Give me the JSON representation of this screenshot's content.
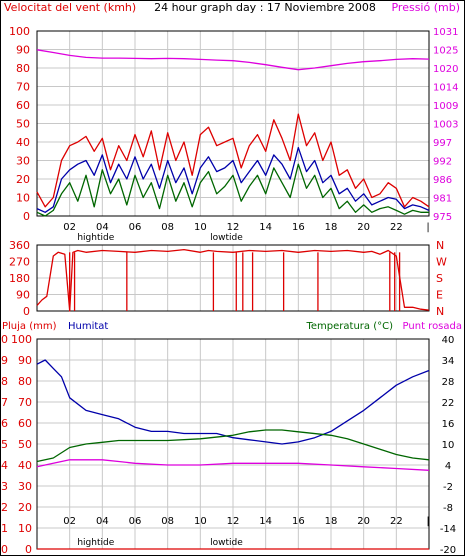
{
  "colors": {
    "red": "#dd0000",
    "blue": "#0000aa",
    "green": "#006600",
    "magenta": "#dd00dd",
    "grid": "#c8c8c8"
  },
  "x_ticks": [
    "02",
    "04",
    "06",
    "08",
    "10",
    "12",
    "14",
    "16",
    "18",
    "20",
    "22"
  ],
  "tide_labels": [
    {
      "text": "hightide",
      "hour": 3.6
    },
    {
      "text": "lowtide",
      "hour": 11.6
    },
    {
      "text": "hightide",
      "hour": 15.6
    },
    {
      "text": "hightide",
      "hour": 24.2
    },
    {
      "text": "lowtide",
      "hour": 12.2
    }
  ],
  "chart_data": [
    {
      "type": "line",
      "title": "24 hour graph day : 17 Noviembre 2008",
      "ylabel_left": "Velocitat del vent (kmh)",
      "ylabel_right": "Pressió (mb)",
      "xlim": [
        0,
        24
      ],
      "ylim_left": [
        0,
        100
      ],
      "yticks_left": [
        "0",
        "10",
        "20",
        "30",
        "40",
        "50",
        "60",
        "70",
        "80",
        "90",
        "100"
      ],
      "yticks_right": [
        "975",
        "981",
        "986",
        "992",
        "997",
        "1003",
        "1009",
        "1014",
        "1020",
        "1025",
        "1031"
      ],
      "ylim_right": [
        975,
        1031
      ],
      "grid": true,
      "series": [
        {
          "color": "magenta",
          "axis": "right",
          "x": [
            0,
            1,
            2,
            3,
            4,
            5,
            6,
            7,
            8,
            9,
            10,
            11,
            12,
            13,
            14,
            15,
            16,
            17,
            18,
            19,
            20,
            21,
            22,
            23,
            24
          ],
          "y": [
            1025.3,
            1024.5,
            1023.6,
            1023.0,
            1022.8,
            1022.8,
            1022.7,
            1022.6,
            1022.7,
            1022.6,
            1022.4,
            1022.2,
            1022.0,
            1021.5,
            1020.8,
            1020.0,
            1019.3,
            1019.8,
            1020.5,
            1021.2,
            1021.7,
            1022.0,
            1022.4,
            1022.6,
            1022.5
          ]
        },
        {
          "color": "red",
          "axis": "left",
          "x": [
            0,
            0.5,
            1,
            1.5,
            2,
            2.5,
            3,
            3.5,
            4,
            4.5,
            5,
            5.5,
            6,
            6.5,
            7,
            7.5,
            8,
            8.5,
            9,
            9.5,
            10,
            10.5,
            11,
            11.5,
            12,
            12.5,
            13,
            13.5,
            14,
            14.5,
            15,
            15.5,
            16,
            16.5,
            17,
            17.5,
            18,
            18.5,
            19,
            19.5,
            20,
            20.5,
            21,
            21.5,
            22,
            22.5,
            23,
            23.5,
            24
          ],
          "y": [
            13,
            5,
            10,
            30,
            38,
            40,
            43,
            35,
            42,
            25,
            38,
            30,
            44,
            32,
            46,
            25,
            45,
            30,
            40,
            22,
            44,
            48,
            38,
            40,
            42,
            26,
            38,
            44,
            35,
            52,
            42,
            30,
            55,
            38,
            45,
            30,
            40,
            22,
            25,
            15,
            20,
            10,
            12,
            18,
            15,
            5,
            10,
            8,
            5
          ]
        },
        {
          "color": "blue",
          "axis": "left",
          "x": [
            0,
            0.5,
            1,
            1.5,
            2,
            2.5,
            3,
            3.5,
            4,
            4.5,
            5,
            5.5,
            6,
            6.5,
            7,
            7.5,
            8,
            8.5,
            9,
            9.5,
            10,
            10.5,
            11,
            11.5,
            12,
            12.5,
            13,
            13.5,
            14,
            14.5,
            15,
            15.5,
            16,
            16.5,
            17,
            17.5,
            18,
            18.5,
            19,
            19.5,
            20,
            20.5,
            21,
            21.5,
            22,
            22.5,
            23,
            23.5,
            24
          ],
          "y": [
            4,
            2,
            5,
            20,
            25,
            28,
            30,
            22,
            33,
            18,
            28,
            20,
            32,
            20,
            28,
            15,
            30,
            18,
            26,
            12,
            26,
            32,
            24,
            26,
            30,
            18,
            24,
            30,
            22,
            33,
            28,
            20,
            37,
            24,
            30,
            18,
            22,
            12,
            15,
            8,
            12,
            6,
            8,
            10,
            9,
            4,
            6,
            5,
            3
          ]
        },
        {
          "color": "green",
          "axis": "left",
          "x": [
            0,
            0.5,
            1,
            1.5,
            2,
            2.5,
            3,
            3.5,
            4,
            4.5,
            5,
            5.5,
            6,
            6.5,
            7,
            7.5,
            8,
            8.5,
            9,
            9.5,
            10,
            10.5,
            11,
            11.5,
            12,
            12.5,
            13,
            13.5,
            14,
            14.5,
            15,
            15.5,
            16,
            16.5,
            17,
            17.5,
            18,
            18.5,
            19,
            19.5,
            20,
            20.5,
            21,
            21.5,
            22,
            22.5,
            23,
            23.5,
            24
          ],
          "y": [
            2,
            0,
            3,
            12,
            18,
            8,
            22,
            5,
            25,
            12,
            20,
            6,
            22,
            10,
            18,
            4,
            22,
            8,
            18,
            5,
            18,
            24,
            12,
            16,
            22,
            8,
            16,
            22,
            12,
            26,
            18,
            10,
            28,
            15,
            22,
            10,
            15,
            4,
            8,
            2,
            6,
            2,
            4,
            5,
            3,
            1,
            3,
            2,
            2
          ]
        }
      ]
    },
    {
      "type": "line",
      "ylabel_right": "N W S E N",
      "xlim": [
        0,
        24
      ],
      "ylim": [
        0,
        360
      ],
      "yticks": [
        "0",
        "90",
        "180",
        "270",
        "360"
      ],
      "yticks_right": [
        "N",
        "E",
        "S",
        "W",
        "N"
      ],
      "grid": true,
      "series": [
        {
          "color": "red",
          "x": [
            0,
            0.3,
            0.6,
            1.0,
            1.3,
            1.7,
            2.0,
            2.2,
            2.5,
            3,
            4,
            5,
            6,
            7,
            8,
            9,
            10,
            10.5,
            11,
            12,
            13,
            14,
            15,
            16,
            17,
            18,
            19,
            20,
            20.5,
            21,
            21.5,
            22,
            22.5,
            23,
            23.5,
            24
          ],
          "y": [
            30,
            60,
            80,
            300,
            320,
            310,
            0,
            320,
            330,
            320,
            330,
            325,
            320,
            330,
            325,
            335,
            320,
            330,
            325,
            320,
            330,
            325,
            330,
            320,
            330,
            325,
            330,
            320,
            325,
            310,
            330,
            300,
            20,
            20,
            10,
            5
          ],
          "spikes_to_zero_hours": [
            2.0,
            2.3,
            5.5,
            10.8,
            12.2,
            12.6,
            13.2,
            15.1,
            17.2,
            21.6,
            21.9,
            22.2
          ]
        }
      ]
    },
    {
      "type": "line",
      "ylabel_left": "Pluja (mm)",
      "label_humidity": "Humitat",
      "ylabel_right": "Temperatura (°C)",
      "label_dewpoint": "Punt rosada",
      "xlim": [
        0,
        24
      ],
      "ylim_left": [
        0,
        100
      ],
      "yticks_left": [
        "0",
        "10",
        "20",
        "30",
        "40",
        "50",
        "60",
        "70",
        "80",
        "90",
        "100"
      ],
      "yticks_pluja": [
        "0",
        "1",
        "2",
        "3",
        "4",
        "5",
        "6",
        "7",
        "8",
        "9",
        "10"
      ],
      "ylim_pluja": [
        0,
        10
      ],
      "yticks_right": [
        "-20",
        "-14",
        "-8",
        "-2",
        "4",
        "10",
        "16",
        "22",
        "28",
        "34",
        "40"
      ],
      "ylim_right": [
        -20,
        40
      ],
      "grid": true,
      "series": [
        {
          "color": "red",
          "axis": "pluja",
          "x": [
            0,
            24
          ],
          "y": [
            0,
            0
          ]
        },
        {
          "color": "blue",
          "axis": "left",
          "x": [
            0,
            0.5,
            1,
            1.5,
            2,
            3,
            4,
            5,
            6,
            7,
            8,
            9,
            10,
            11,
            12,
            13,
            14,
            15,
            16,
            17,
            18,
            19,
            20,
            21,
            22,
            23,
            24
          ],
          "y": [
            88,
            90,
            86,
            82,
            72,
            66,
            64,
            62,
            58,
            56,
            56,
            55,
            55,
            55,
            53,
            52,
            51,
            50,
            51,
            53,
            56,
            61,
            66,
            72,
            78,
            82,
            85
          ]
        },
        {
          "color": "green",
          "axis": "right",
          "x": [
            0,
            1,
            2,
            3,
            4,
            5,
            6,
            8,
            10,
            12,
            13,
            14,
            15,
            16,
            18,
            19,
            20,
            21,
            22,
            23,
            24
          ],
          "y": [
            5,
            6,
            9,
            10,
            10.5,
            11,
            11,
            11,
            11.5,
            12.5,
            13.5,
            14,
            14,
            13.5,
            12.5,
            11.5,
            10,
            8.5,
            7,
            6,
            5.5
          ]
        },
        {
          "color": "magenta",
          "axis": "right",
          "x": [
            0,
            1,
            2,
            3,
            4,
            5,
            6,
            8,
            10,
            12,
            14,
            16,
            18,
            20,
            22,
            24
          ],
          "y": [
            3.5,
            4.5,
            5.5,
            5.5,
            5.5,
            5,
            4.5,
            4,
            4,
            4.5,
            4.5,
            4.5,
            4,
            3.5,
            3,
            2.5
          ]
        }
      ]
    }
  ]
}
